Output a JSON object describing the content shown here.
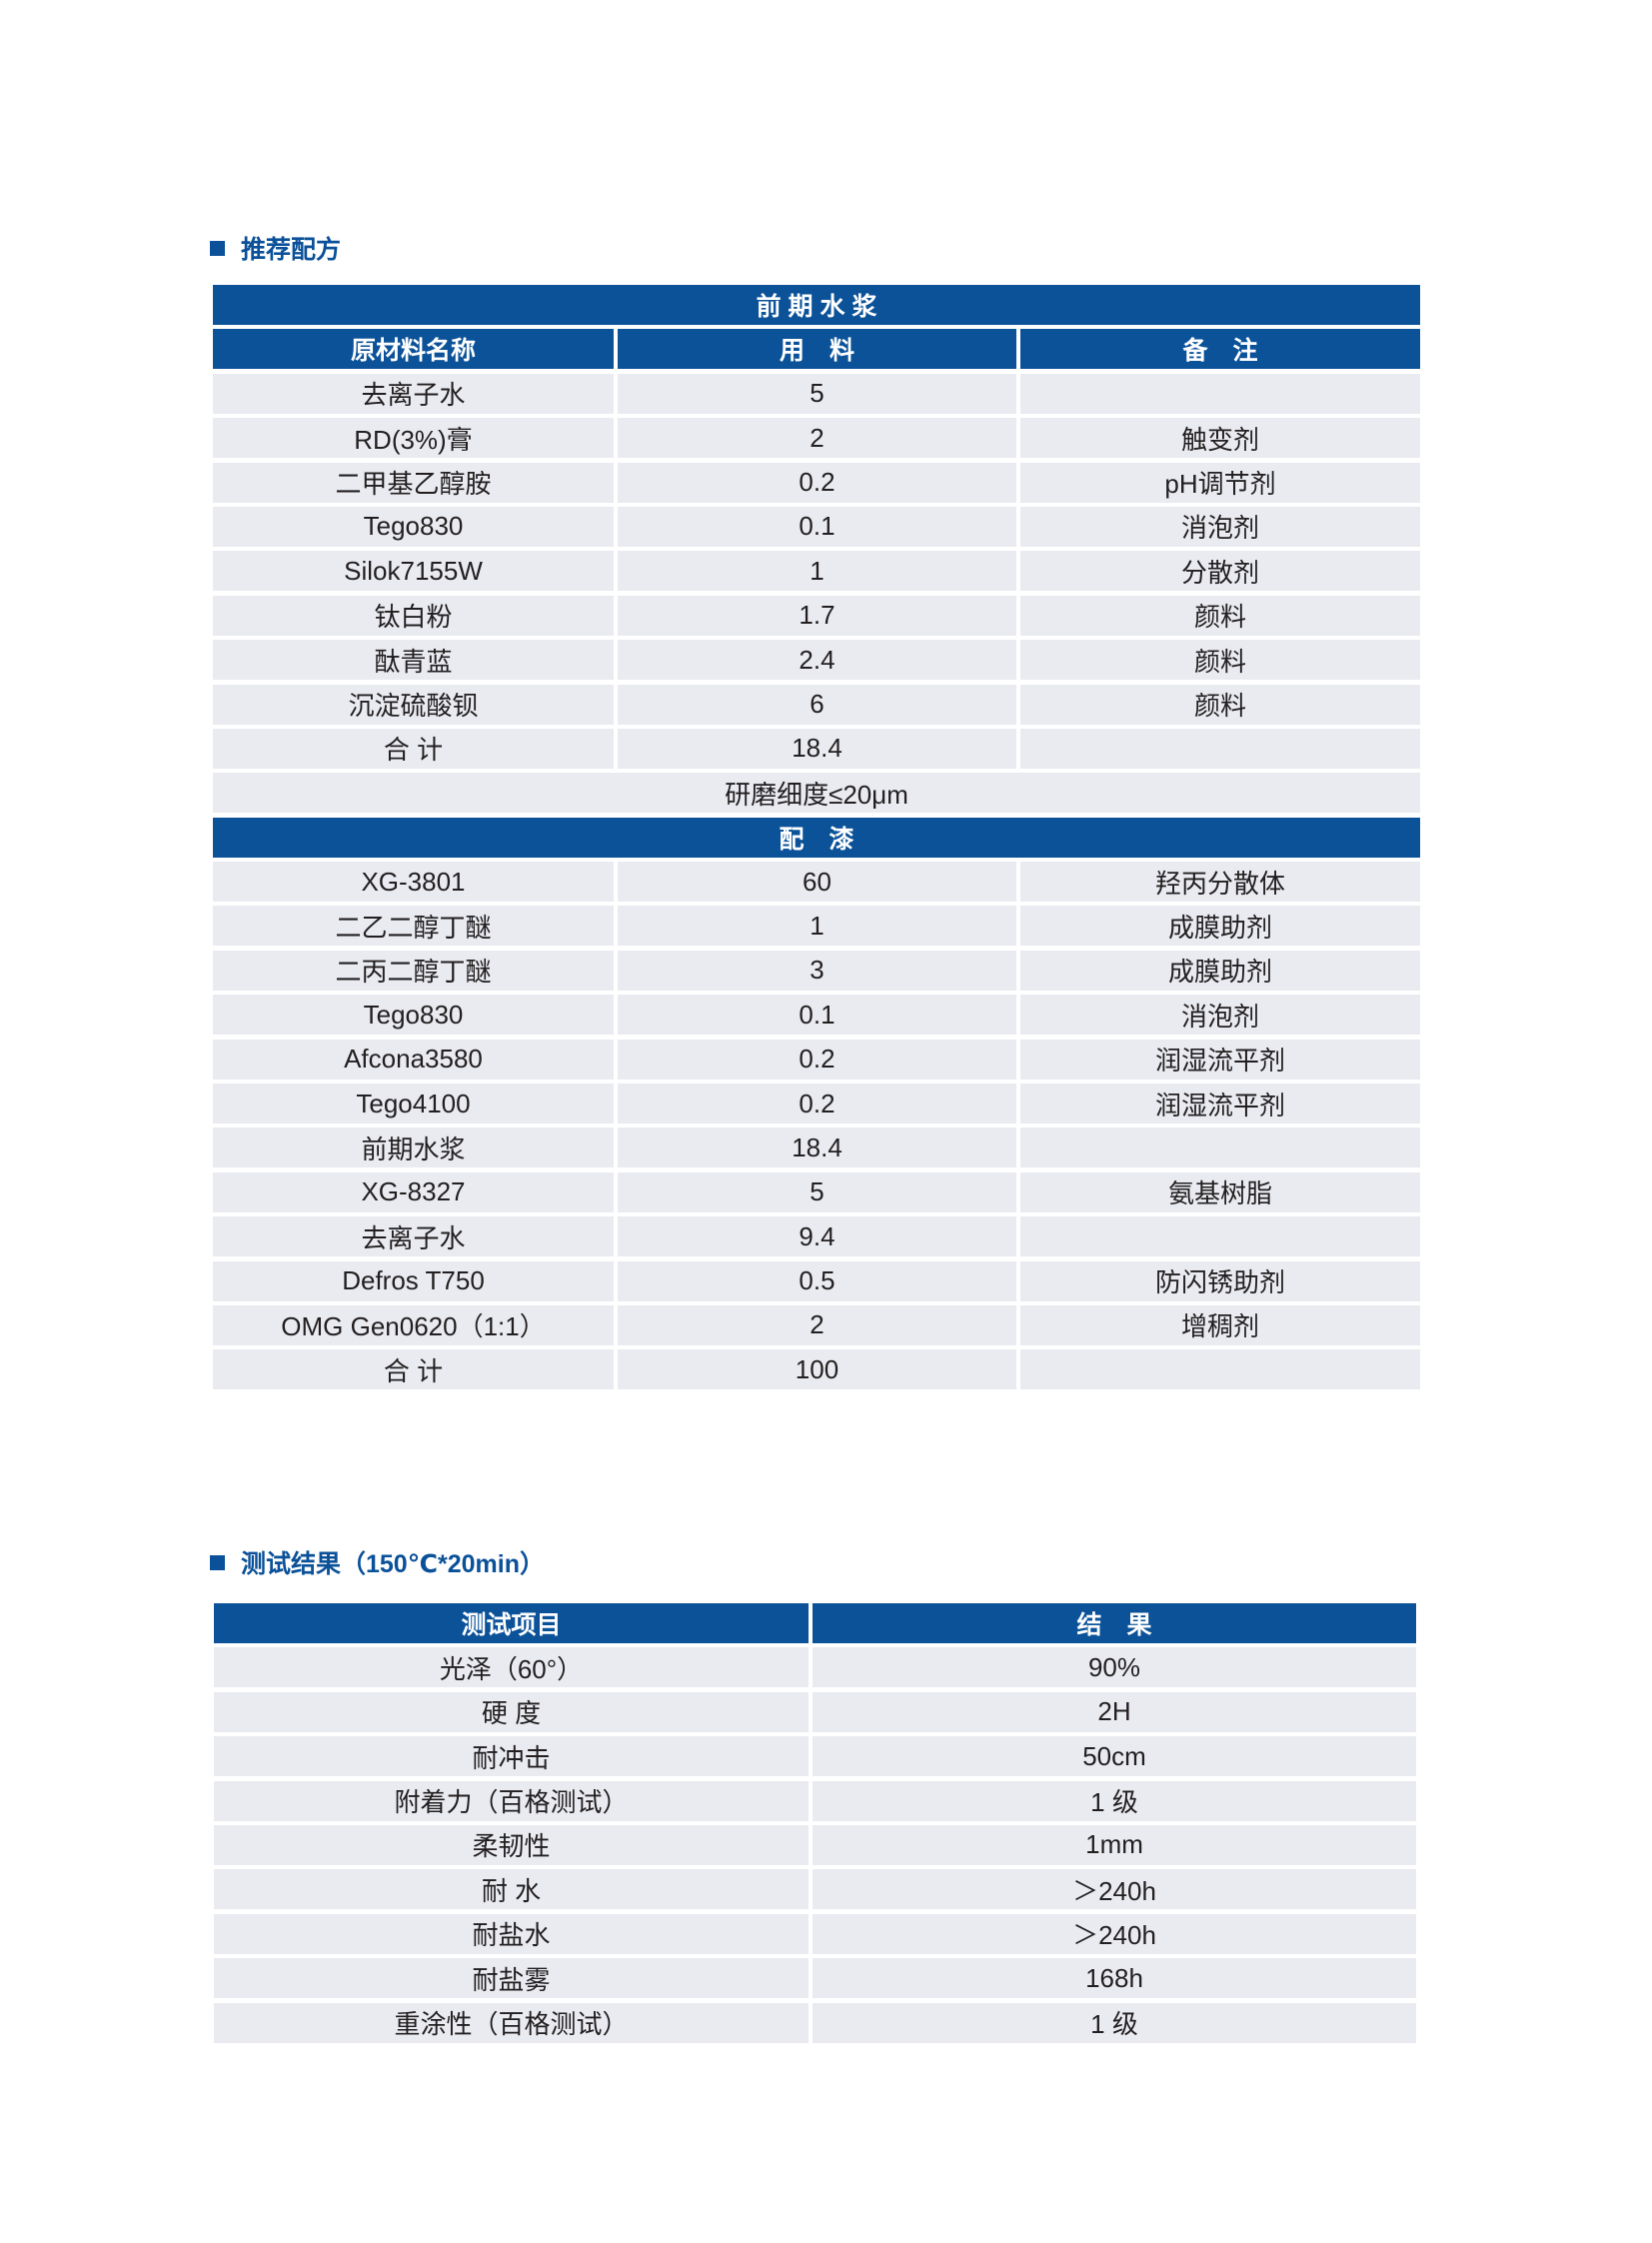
{
  "formula_section": {
    "title": "推荐配方",
    "band1": "前 期 水 浆",
    "headers": [
      "原材料名称",
      "用　料",
      "备　注"
    ],
    "slurry_rows": [
      [
        "去离子水",
        "5",
        ""
      ],
      [
        "RD(3%)膏",
        "2",
        "触变剂"
      ],
      [
        "二甲基乙醇胺",
        "0.2",
        "pH调节剂"
      ],
      [
        "Tego830",
        "0.1",
        "消泡剂"
      ],
      [
        "Silok7155W",
        "1",
        "分散剂"
      ],
      [
        "钛白粉",
        "1.7",
        "颜料"
      ],
      [
        "酞青蓝",
        "2.4",
        "颜料"
      ],
      [
        "沉淀硫酸钡",
        "6",
        "颜料"
      ],
      [
        "合 计",
        "18.4",
        ""
      ]
    ],
    "fineness": "研磨细度≤20μm",
    "band2": "配　漆",
    "paint_rows": [
      [
        "XG-3801",
        "60",
        "羟丙分散体"
      ],
      [
        "二乙二醇丁醚",
        "1",
        "成膜助剂"
      ],
      [
        "二丙二醇丁醚",
        "3",
        "成膜助剂"
      ],
      [
        "Tego830",
        "0.1",
        "消泡剂"
      ],
      [
        "Afcona3580",
        "0.2",
        "润湿流平剂"
      ],
      [
        "Tego4100",
        "0.2",
        "润湿流平剂"
      ],
      [
        "前期水浆",
        "18.4",
        ""
      ],
      [
        "XG-8327",
        "5",
        "氨基树脂"
      ],
      [
        "去离子水",
        "9.4",
        ""
      ],
      [
        "Defros T750",
        "0.5",
        "防闪锈助剂"
      ],
      [
        "OMG Gen0620（1:1）",
        "2",
        "增稠剂"
      ],
      [
        "合 计",
        "100",
        ""
      ]
    ]
  },
  "test_section": {
    "title": "测试结果（150℃*20min）",
    "headers": [
      "测试项目",
      "结　果"
    ],
    "rows": [
      [
        "光泽（60°）",
        "90%"
      ],
      [
        "硬 度",
        "2H"
      ],
      [
        "耐冲击",
        "50cm"
      ],
      [
        "附着力（百格测试）",
        "1 级"
      ],
      [
        "柔韧性",
        "1mm"
      ],
      [
        "耐 水",
        "＞240h"
      ],
      [
        "耐盐水",
        "＞240h"
      ],
      [
        "耐盐雾",
        "168h"
      ],
      [
        "重涂性（百格测试）",
        "1 级"
      ]
    ]
  },
  "colors": {
    "accent": "#0b5299",
    "row_bg": "#e9ebf1"
  }
}
